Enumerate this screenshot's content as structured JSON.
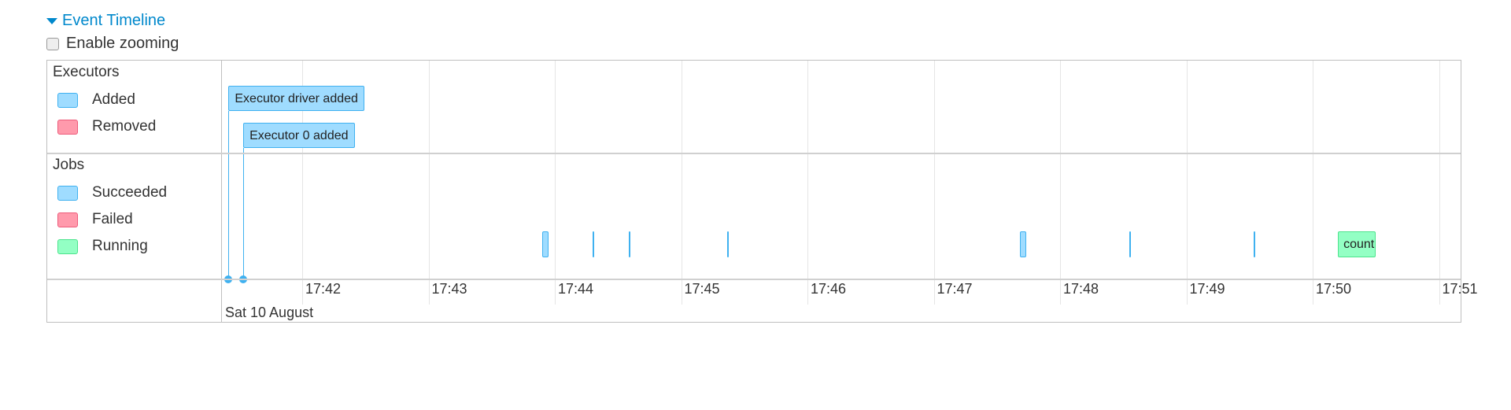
{
  "header": {
    "title": "Event Timeline",
    "zoom_label": "Enable zooming",
    "zoom_checked": false
  },
  "groups": {
    "executors": {
      "label": "Executors",
      "legend": [
        {
          "label": "Added",
          "color": "#9fdcff",
          "border": "#3fb1f0"
        },
        {
          "label": "Removed",
          "color": "#ff9aac",
          "border": "#ed5b7a"
        }
      ]
    },
    "jobs": {
      "label": "Jobs",
      "legend": [
        {
          "label": "Succeeded",
          "color": "#9fdcff",
          "border": "#3fb1f0"
        },
        {
          "label": "Failed",
          "color": "#ff9aac",
          "border": "#ed5b7a"
        },
        {
          "label": "Running",
          "color": "#93ffc4",
          "border": "#4ce38c"
        }
      ]
    }
  },
  "axis": {
    "ticks": [
      "17:42",
      "17:43",
      "17:44",
      "17:45",
      "17:46",
      "17:47",
      "17:48",
      "17:49",
      "17:50",
      "17:51"
    ],
    "date": "Sat 10 August"
  },
  "executor_events": [
    {
      "label": "Executor driver added",
      "time": "17:41:25"
    },
    {
      "label": "Executor 0 added",
      "time": "17:41:32"
    }
  ],
  "jobs": [
    {
      "status": "succeeded",
      "start": "17:43:54",
      "end": "17:43:57",
      "label": ""
    },
    {
      "status": "succeeded",
      "start": "17:44:18",
      "end": "17:44:18",
      "label": ""
    },
    {
      "status": "succeeded",
      "start": "17:44:35",
      "end": "17:44:35",
      "label": ""
    },
    {
      "status": "succeeded",
      "start": "17:45:22",
      "end": "17:45:22",
      "label": ""
    },
    {
      "status": "succeeded",
      "start": "17:47:41",
      "end": "17:47:43",
      "label": ""
    },
    {
      "status": "succeeded",
      "start": "17:48:33",
      "end": "17:48:33",
      "label": ""
    },
    {
      "status": "succeeded",
      "start": "17:49:32",
      "end": "17:49:32",
      "label": ""
    },
    {
      "status": "running",
      "start": "17:50:12",
      "end": "17:50:30",
      "label": "count"
    }
  ]
}
